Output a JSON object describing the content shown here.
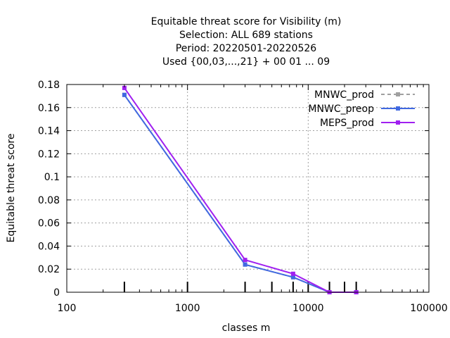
{
  "chart_data": {
    "type": "line",
    "title_lines": [
      "Equitable threat score  for Visibility (m)",
      "Selection: ALL    689 stations",
      "Period: 20220501-20220526",
      "Used {00,03,...,21} + 00 01 ... 09"
    ],
    "xlabel": "classes m",
    "ylabel": "Equitable threat score",
    "x_scale": "log",
    "xlim": [
      100,
      100000
    ],
    "ylim": [
      0,
      0.18
    ],
    "x_ticks": [
      100,
      1000,
      10000,
      100000
    ],
    "x_tick_labels": [
      "100",
      "1000",
      "10000",
      "100000"
    ],
    "y_ticks": [
      0,
      0.02,
      0.04,
      0.06,
      0.08,
      0.1,
      0.12,
      0.14,
      0.16,
      0.18
    ],
    "y_tick_labels": [
      "0",
      "0.02",
      "0.04",
      "0.06",
      "0.08",
      "0.1",
      "0.12",
      "0.14",
      "0.16",
      "0.18"
    ],
    "class_markers": [
      300,
      1000,
      3000,
      5000,
      7500,
      10000,
      15000,
      20000,
      25000
    ],
    "grid": true,
    "legend_position": "top-right",
    "series": [
      {
        "name": "MNWC_prod",
        "color": "#a0a0a0",
        "dashed": true,
        "x": [
          300,
          3000,
          7500,
          15000,
          25000
        ],
        "y": [
          0.171,
          0.024,
          0.013,
          0.0,
          0.0
        ]
      },
      {
        "name": "MNWC_preop",
        "color": "#4169e1",
        "dashed": false,
        "x": [
          300,
          3000,
          7500,
          15000,
          25000
        ],
        "y": [
          0.171,
          0.024,
          0.013,
          0.0,
          0.0
        ]
      },
      {
        "name": "MEPS_prod",
        "color": "#a020f0",
        "dashed": false,
        "x": [
          300,
          3000,
          7500,
          15000,
          25000
        ],
        "y": [
          0.177,
          0.028,
          0.016,
          0.0,
          0.0
        ]
      }
    ]
  }
}
